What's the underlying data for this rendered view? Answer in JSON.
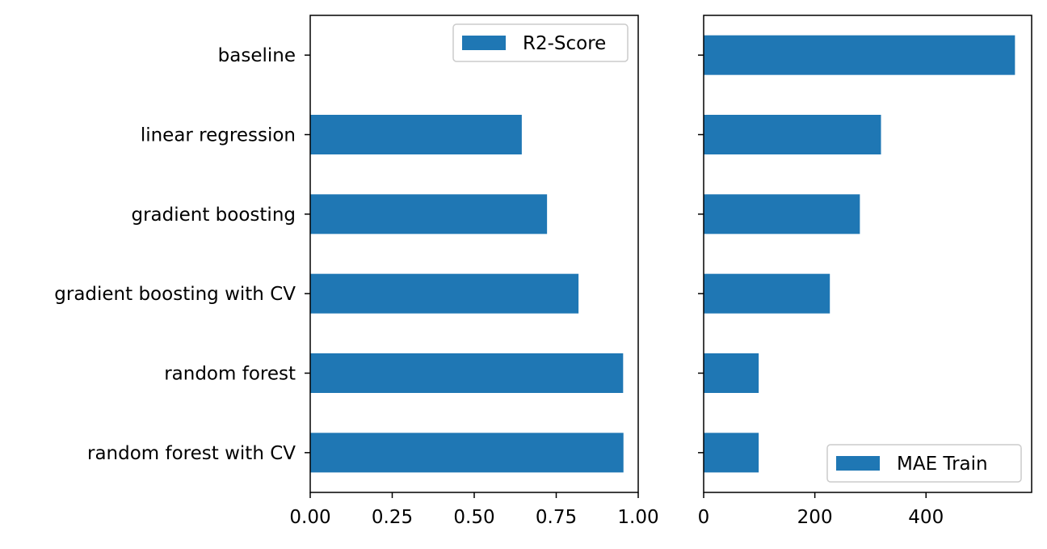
{
  "chart_data": [
    {
      "type": "bar",
      "orientation": "horizontal",
      "categories": [
        "baseline",
        "linear regression",
        "gradient boosting",
        "gradient boosting with CV",
        "random forest",
        "random forest with CV"
      ],
      "series": [
        {
          "name": "R2-Score",
          "values": [
            0.0,
            0.645,
            0.722,
            0.818,
            0.954,
            0.955
          ]
        }
      ],
      "xlim": [
        0,
        1.0
      ],
      "xticks": [
        "0.00",
        "0.25",
        "0.50",
        "0.75",
        "1.00"
      ],
      "xlabel": "",
      "ylabel": "",
      "title": "",
      "legend_position": "upper right",
      "grid": false,
      "bar_color": "#1f77b4"
    },
    {
      "type": "bar",
      "orientation": "horizontal",
      "categories": [
        "baseline",
        "linear regression",
        "gradient boosting",
        "gradient boosting with CV",
        "random forest",
        "random forest with CV"
      ],
      "series": [
        {
          "name": "MAE Train",
          "values": [
            560,
            319,
            281,
            227,
            99,
            99
          ]
        }
      ],
      "xlim": [
        0,
        590
      ],
      "xticks": [
        "0",
        "200",
        "400"
      ],
      "xlabel": "",
      "ylabel": "",
      "title": "",
      "legend_position": "lower right",
      "grid": false,
      "shared_y": true,
      "bar_color": "#1f77b4"
    }
  ]
}
